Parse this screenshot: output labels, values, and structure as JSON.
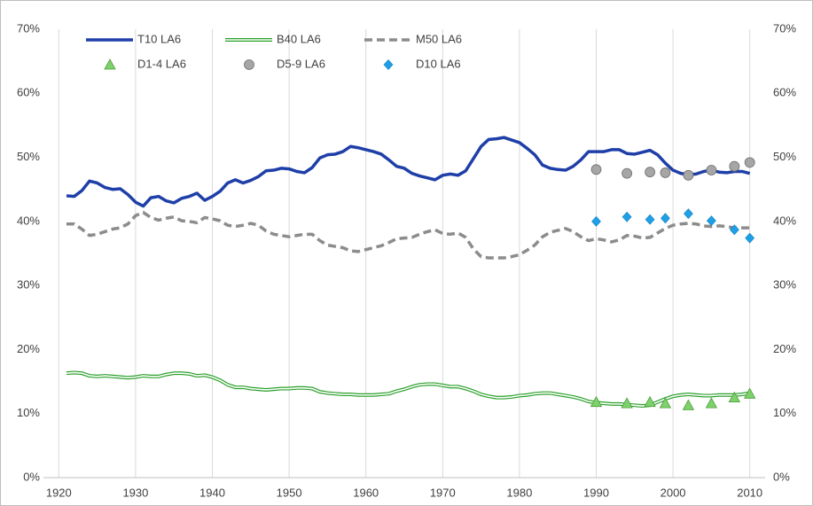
{
  "chart_data": {
    "type": "line",
    "xlim": [
      1918,
      2012
    ],
    "xticks": [
      1920,
      1930,
      1940,
      1950,
      1960,
      1970,
      1980,
      1990,
      2000,
      2010
    ],
    "ylim": [
      0,
      70
    ],
    "yticks": [
      {
        "value": 0,
        "label": "0%"
      },
      {
        "value": 10,
        "label": "10%"
      },
      {
        "value": 20,
        "label": "20%"
      },
      {
        "value": 30,
        "label": "30%"
      },
      {
        "value": 40,
        "label": "40%"
      },
      {
        "value": 50,
        "label": "50%"
      },
      {
        "value": 60,
        "label": "60%"
      },
      {
        "value": 70,
        "label": "70%"
      }
    ],
    "y2lim": [
      0,
      70
    ],
    "y2ticks": [
      {
        "value": 0,
        "label": "0%"
      },
      {
        "value": 10,
        "label": "10%"
      },
      {
        "value": 20,
        "label": "20%"
      },
      {
        "value": 30,
        "label": "30%"
      },
      {
        "value": 40,
        "label": "40%"
      },
      {
        "value": 50,
        "label": "50%"
      },
      {
        "value": 60,
        "label": "60%"
      },
      {
        "value": 70,
        "label": "70%"
      }
    ],
    "grid": "x",
    "legend": "top-left",
    "x": [
      1921,
      1922,
      1923,
      1924,
      1925,
      1926,
      1927,
      1928,
      1929,
      1930,
      1931,
      1932,
      1933,
      1934,
      1935,
      1936,
      1937,
      1938,
      1939,
      1940,
      1941,
      1942,
      1943,
      1944,
      1945,
      1946,
      1947,
      1948,
      1949,
      1950,
      1951,
      1952,
      1953,
      1954,
      1955,
      1956,
      1957,
      1958,
      1959,
      1960,
      1961,
      1962,
      1963,
      1964,
      1965,
      1966,
      1967,
      1968,
      1969,
      1970,
      1971,
      1972,
      1973,
      1974,
      1975,
      1976,
      1977,
      1978,
      1979,
      1980,
      1981,
      1982,
      1983,
      1984,
      1985,
      1986,
      1987,
      1988,
      1989,
      1990,
      1991,
      1992,
      1993,
      1994,
      1995,
      1996,
      1997,
      1998,
      1999,
      2000,
      2001,
      2002,
      2003,
      2004,
      2005,
      2006,
      2007,
      2008,
      2009,
      2010
    ],
    "series": [
      {
        "name": "T10 LA6",
        "type": "line",
        "line_style": "solid",
        "color": "#1f3fa8",
        "values": [
          44.0,
          43.9,
          44.8,
          46.3,
          46.0,
          45.3,
          45.0,
          45.1,
          44.2,
          43.0,
          42.4,
          43.7,
          43.9,
          43.2,
          42.9,
          43.6,
          43.9,
          44.4,
          43.3,
          43.9,
          44.7,
          46.0,
          46.5,
          46.0,
          46.4,
          47.0,
          47.9,
          48.0,
          48.3,
          48.2,
          47.8,
          47.6,
          48.4,
          49.9,
          50.4,
          50.5,
          50.9,
          51.7,
          51.5,
          51.2,
          50.9,
          50.5,
          49.6,
          48.6,
          48.3,
          47.5,
          47.1,
          46.8,
          46.5,
          47.2,
          47.4,
          47.2,
          47.9,
          49.8,
          51.7,
          52.8,
          52.9,
          53.1,
          52.7,
          52.3,
          51.4,
          50.4,
          48.8,
          48.3,
          48.1,
          48.0,
          48.6,
          49.6,
          50.9,
          50.9,
          50.9,
          51.2,
          51.2,
          50.6,
          50.5,
          50.8,
          51.1,
          50.4,
          49.1,
          48.0,
          47.5,
          47.3,
          47.4,
          47.8,
          48.0,
          47.7,
          47.6,
          47.8,
          47.8,
          47.5
        ]
      },
      {
        "name": "B40 LA6",
        "type": "line",
        "line_style": "double",
        "color": "#2ca02c",
        "values": [
          16.3,
          16.4,
          16.3,
          15.9,
          15.8,
          15.9,
          15.8,
          15.7,
          15.6,
          15.7,
          15.9,
          15.8,
          15.8,
          16.1,
          16.3,
          16.3,
          16.2,
          15.9,
          16.0,
          15.7,
          15.2,
          14.5,
          14.1,
          14.1,
          13.9,
          13.8,
          13.7,
          13.8,
          13.9,
          13.9,
          14.0,
          14.0,
          13.9,
          13.4,
          13.2,
          13.1,
          13.0,
          13.0,
          12.9,
          12.9,
          12.9,
          13.0,
          13.1,
          13.5,
          13.8,
          14.2,
          14.5,
          14.6,
          14.6,
          14.4,
          14.2,
          14.2,
          13.9,
          13.5,
          13.0,
          12.7,
          12.5,
          12.5,
          12.6,
          12.8,
          12.9,
          13.1,
          13.2,
          13.2,
          13.0,
          12.8,
          12.6,
          12.3,
          11.9,
          11.7,
          11.6,
          11.5,
          11.5,
          11.4,
          11.3,
          11.2,
          11.3,
          11.8,
          12.3,
          12.7,
          12.9,
          13.0,
          12.9,
          12.8,
          12.8,
          12.9,
          12.9,
          12.9,
          13.0,
          13.2
        ]
      },
      {
        "name": "M50 LA6",
        "type": "line",
        "line_style": "dashed",
        "color": "#8c8c8c",
        "values": [
          39.6,
          39.6,
          38.8,
          37.8,
          38.0,
          38.4,
          38.8,
          39.0,
          39.6,
          40.9,
          41.4,
          40.6,
          40.2,
          40.5,
          40.7,
          40.1,
          40.0,
          39.8,
          40.6,
          40.4,
          40.1,
          39.4,
          39.2,
          39.4,
          39.7,
          39.4,
          38.5,
          38.0,
          37.8,
          37.6,
          37.8,
          38.0,
          38.0,
          37.0,
          36.3,
          36.1,
          35.9,
          35.4,
          35.3,
          35.6,
          35.9,
          36.2,
          36.7,
          37.3,
          37.4,
          37.5,
          38.0,
          38.4,
          38.7,
          38.1,
          38.0,
          38.2,
          37.5,
          35.7,
          34.5,
          34.3,
          34.3,
          34.3,
          34.5,
          34.8,
          35.5,
          36.3,
          37.6,
          38.3,
          38.6,
          38.9,
          38.4,
          37.6,
          37.0,
          37.3,
          37.1,
          36.8,
          37.1,
          37.8,
          37.7,
          37.4,
          37.5,
          38.2,
          38.9,
          39.4,
          39.6,
          39.7,
          39.6,
          39.3,
          39.2,
          39.3,
          39.2,
          39.0,
          39.0,
          39.0
        ]
      },
      {
        "name": "D1-4 LA6",
        "type": "scatter",
        "marker": "triangle",
        "color": "#7ed26b",
        "x": [
          1990,
          1994,
          1997,
          1999,
          2002,
          2005,
          2008,
          2010
        ],
        "values": [
          11.8,
          11.6,
          11.8,
          11.6,
          11.3,
          11.6,
          12.5,
          13.1
        ]
      },
      {
        "name": "D5-9 LA6",
        "type": "scatter",
        "marker": "circle",
        "color": "#a6a6a6",
        "x": [
          1990,
          1994,
          1997,
          1999,
          2002,
          2005,
          2008,
          2010
        ],
        "values": [
          48.1,
          47.5,
          47.7,
          47.6,
          47.2,
          48.0,
          48.6,
          49.2
        ]
      },
      {
        "name": "D10 LA6",
        "type": "scatter",
        "marker": "diamond",
        "color": "#1e9fe6",
        "x": [
          1990,
          1994,
          1997,
          1999,
          2002,
          2005,
          2008,
          2010
        ],
        "values": [
          40.0,
          40.7,
          40.3,
          40.5,
          41.2,
          40.1,
          38.7,
          37.4
        ]
      }
    ]
  }
}
